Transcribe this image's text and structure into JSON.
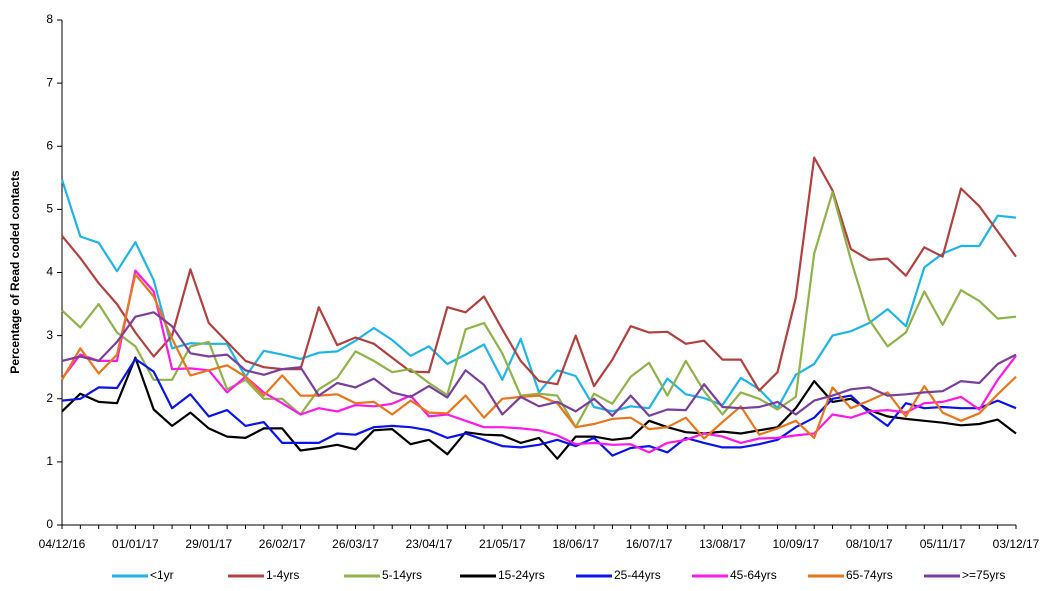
{
  "chart_data": {
    "type": "line",
    "y_label": "Percentage of Read coded contacts",
    "categories": [
      "04/12/16",
      null,
      null,
      null,
      "01/01/17",
      null,
      null,
      null,
      "29/01/17",
      null,
      null,
      null,
      "26/02/17",
      null,
      null,
      null,
      "26/03/17",
      null,
      null,
      null,
      "23/04/17",
      null,
      null,
      null,
      "21/05/17",
      null,
      null,
      null,
      "18/06/17",
      null,
      null,
      null,
      "16/07/17",
      null,
      null,
      null,
      "13/08/17",
      null,
      null,
      null,
      "10/09/17",
      null,
      null,
      null,
      "08/10/17",
      null,
      null,
      null,
      "05/11/17",
      null,
      null,
      null,
      "03/12/17"
    ],
    "ylim": [
      0,
      8
    ],
    "yticks": [
      0,
      1,
      2,
      3,
      4,
      5,
      6,
      7,
      8
    ],
    "series": [
      {
        "name": "<1yr",
        "color": "#1fb4e6",
        "values": [
          5.47,
          4.57,
          4.47,
          4.02,
          4.48,
          3.88,
          2.8,
          2.88,
          2.87,
          2.87,
          2.35,
          2.76,
          2.7,
          2.63,
          2.73,
          2.75,
          2.92,
          3.12,
          2.93,
          2.68,
          2.83,
          2.55,
          2.7,
          2.86,
          2.3,
          2.95,
          2.1,
          2.45,
          2.36,
          1.87,
          1.8,
          1.88,
          1.85,
          2.32,
          2.07,
          2.01,
          1.9,
          2.33,
          2.15,
          1.85,
          2.38,
          2.55,
          3.0,
          3.07,
          3.2,
          3.42,
          3.15,
          4.08,
          4.3,
          4.42,
          4.42,
          4.9,
          4.87
        ]
      },
      {
        "name": "1-4yrs",
        "color": "#b0413e",
        "values": [
          4.58,
          4.23,
          3.83,
          3.5,
          3.05,
          2.67,
          3.0,
          4.05,
          3.2,
          2.9,
          2.6,
          2.5,
          2.47,
          2.47,
          3.45,
          2.85,
          2.97,
          2.87,
          2.65,
          2.43,
          2.42,
          3.45,
          3.37,
          3.62,
          3.1,
          2.6,
          2.28,
          2.23,
          3.0,
          2.2,
          2.62,
          3.15,
          3.05,
          3.06,
          2.87,
          2.92,
          2.62,
          2.62,
          2.13,
          2.42,
          3.6,
          5.82,
          5.3,
          4.37,
          4.2,
          4.22,
          3.95,
          4.4,
          4.25,
          5.33,
          5.05,
          4.65,
          4.25
        ]
      },
      {
        "name": "5-14yrs",
        "color": "#8fb24a",
        "values": [
          3.4,
          3.13,
          3.5,
          3.05,
          2.83,
          2.3,
          2.3,
          2.83,
          2.9,
          2.15,
          2.3,
          2.0,
          2.0,
          1.75,
          2.15,
          2.33,
          2.75,
          2.6,
          2.42,
          2.47,
          2.25,
          2.06,
          3.1,
          3.2,
          2.72,
          2.05,
          2.08,
          2.05,
          1.55,
          2.08,
          1.92,
          2.35,
          2.57,
          2.05,
          2.6,
          2.12,
          1.75,
          2.1,
          2.0,
          1.83,
          2.03,
          4.3,
          5.27,
          4.2,
          3.25,
          2.83,
          3.05,
          3.7,
          3.17,
          3.72,
          3.55,
          3.27,
          3.3
        ]
      },
      {
        "name": "15-24yrs",
        "color": "#000000",
        "values": [
          1.8,
          2.08,
          1.95,
          1.93,
          2.65,
          1.83,
          1.57,
          1.78,
          1.53,
          1.4,
          1.38,
          1.53,
          1.53,
          1.18,
          1.22,
          1.27,
          1.2,
          1.5,
          1.52,
          1.28,
          1.35,
          1.12,
          1.47,
          1.43,
          1.42,
          1.3,
          1.38,
          1.05,
          1.4,
          1.4,
          1.35,
          1.38,
          1.65,
          1.55,
          1.47,
          1.45,
          1.48,
          1.45,
          1.5,
          1.55,
          1.85,
          2.28,
          1.95,
          2.0,
          1.82,
          1.72,
          1.68,
          1.65,
          1.62,
          1.58,
          1.6,
          1.67,
          1.45
        ]
      },
      {
        "name": "25-44yrs",
        "color": "#0a14e6",
        "values": [
          1.97,
          2.0,
          2.18,
          2.17,
          2.63,
          2.43,
          1.85,
          2.07,
          1.72,
          1.82,
          1.57,
          1.63,
          1.3,
          1.3,
          1.3,
          1.45,
          1.43,
          1.55,
          1.57,
          1.55,
          1.5,
          1.38,
          1.45,
          1.35,
          1.25,
          1.23,
          1.27,
          1.35,
          1.25,
          1.38,
          1.1,
          1.22,
          1.25,
          1.15,
          1.38,
          1.3,
          1.23,
          1.23,
          1.28,
          1.35,
          1.55,
          1.7,
          2.0,
          2.05,
          1.78,
          1.57,
          1.93,
          1.85,
          1.87,
          1.85,
          1.85,
          1.97,
          1.85
        ]
      },
      {
        "name": "45-64yrs",
        "color": "#ff19e6",
        "values": [
          2.32,
          2.7,
          2.6,
          2.6,
          4.03,
          3.7,
          2.47,
          2.48,
          2.45,
          2.1,
          2.35,
          2.1,
          1.93,
          1.75,
          1.85,
          1.8,
          1.9,
          1.88,
          1.92,
          2.05,
          1.72,
          1.75,
          1.65,
          1.55,
          1.55,
          1.53,
          1.5,
          1.42,
          1.28,
          1.3,
          1.27,
          1.28,
          1.15,
          1.3,
          1.35,
          1.45,
          1.4,
          1.3,
          1.37,
          1.38,
          1.42,
          1.45,
          1.75,
          1.7,
          1.8,
          1.82,
          1.78,
          1.93,
          1.95,
          2.03,
          1.83,
          2.3,
          2.68
        ]
      },
      {
        "name": "65-74yrs",
        "color": "#e8761c",
        "values": [
          2.3,
          2.8,
          2.4,
          2.7,
          3.97,
          3.62,
          2.95,
          2.37,
          2.45,
          2.53,
          2.35,
          2.05,
          2.37,
          2.05,
          2.05,
          2.07,
          1.93,
          1.95,
          1.75,
          1.97,
          1.78,
          1.77,
          2.05,
          1.7,
          2.0,
          2.03,
          2.05,
          1.93,
          1.55,
          1.6,
          1.68,
          1.7,
          1.52,
          1.55,
          1.7,
          1.37,
          1.63,
          1.88,
          1.43,
          1.53,
          1.65,
          1.38,
          2.18,
          1.85,
          1.97,
          2.1,
          1.72,
          2.2,
          1.78,
          1.65,
          1.77,
          2.07,
          2.35
        ]
      },
      {
        "name": ">=75yrs",
        "color": "#7a3f9a",
        "values": [
          2.6,
          2.67,
          2.6,
          2.9,
          3.3,
          3.37,
          3.15,
          2.72,
          2.67,
          2.7,
          2.45,
          2.38,
          2.47,
          2.5,
          2.05,
          2.25,
          2.18,
          2.32,
          2.1,
          2.03,
          2.2,
          2.02,
          2.45,
          2.22,
          1.75,
          2.03,
          1.88,
          1.95,
          1.8,
          2.0,
          1.73,
          2.05,
          1.73,
          1.83,
          1.82,
          2.23,
          1.87,
          1.85,
          1.87,
          1.95,
          1.75,
          1.97,
          2.05,
          2.15,
          2.18,
          2.05,
          2.07,
          2.1,
          2.12,
          2.28,
          2.25,
          2.55,
          2.7
        ]
      }
    ]
  }
}
